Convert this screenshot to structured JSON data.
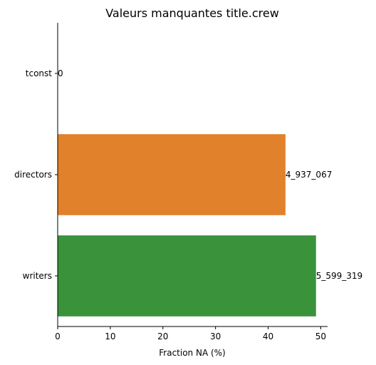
{
  "chart_data": {
    "type": "bar",
    "orientation": "horizontal",
    "title": "Valeurs manquantes title.crew",
    "xlabel": "Fraction NA (%)",
    "ylabel": "",
    "xlim": [
      0,
      51.3
    ],
    "xticks": [
      0,
      10,
      20,
      30,
      40,
      50
    ],
    "categories": [
      "tconst",
      "directors",
      "writers"
    ],
    "values": [
      0,
      43.3,
      49.1
    ],
    "data_labels": [
      "0",
      "4_937_067",
      "5_599_319"
    ],
    "colors": [
      "#1f77b4",
      "#e1812c",
      "#3a923a"
    ],
    "grid": false,
    "legend": "none"
  }
}
